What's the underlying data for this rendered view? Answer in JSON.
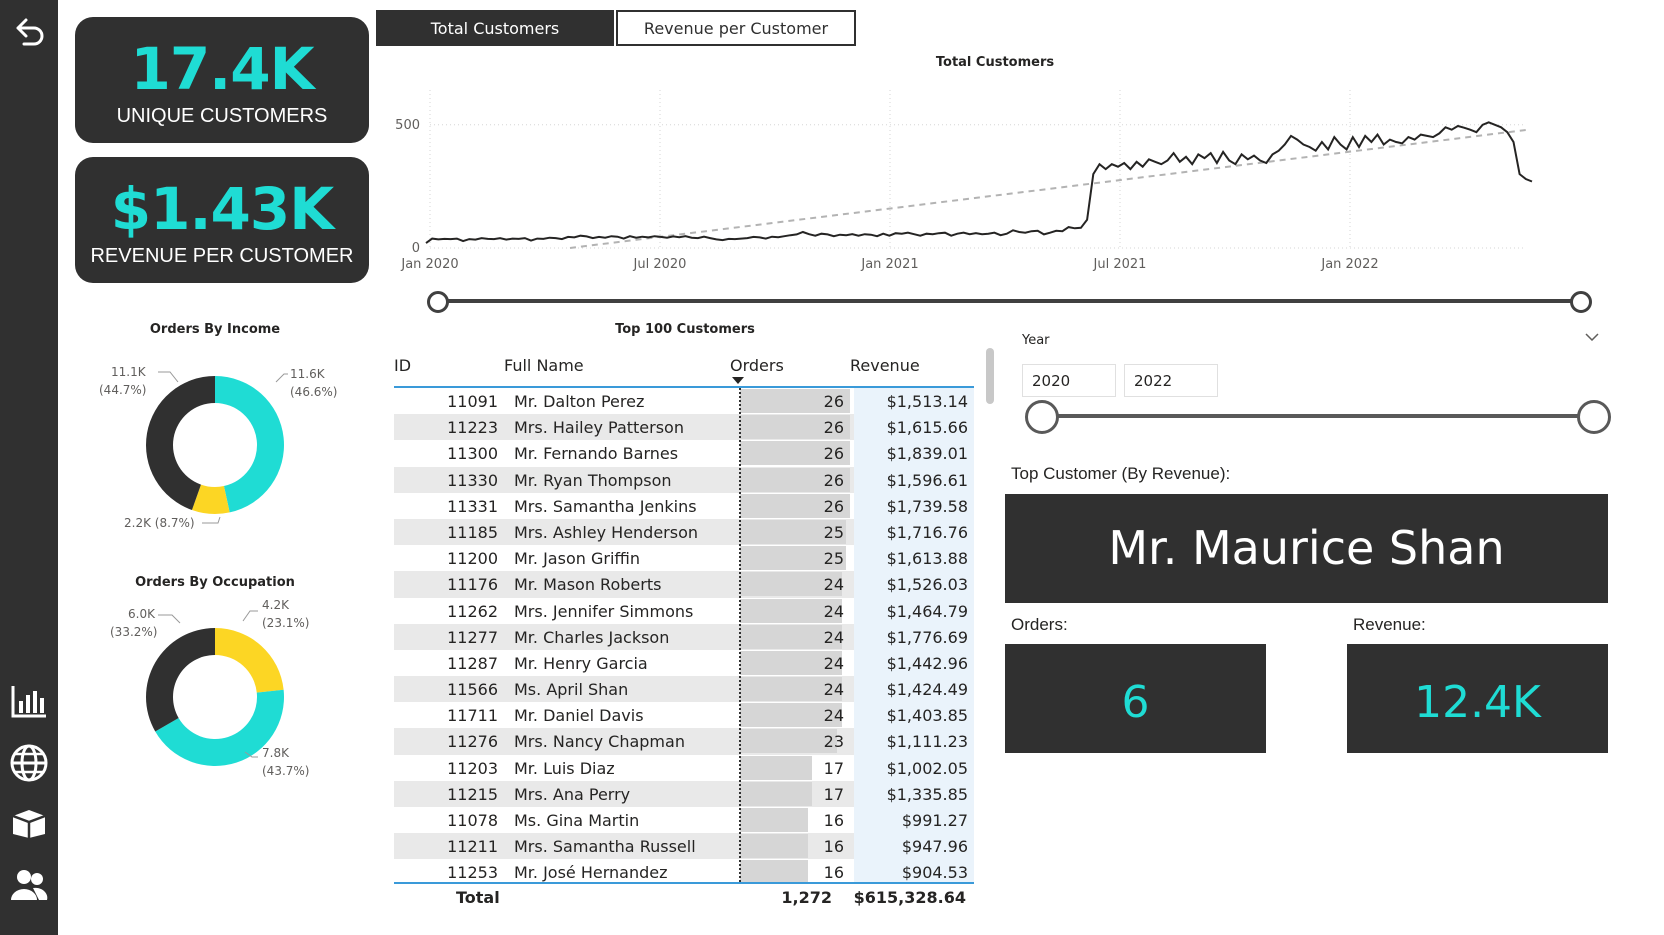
{
  "nav": {
    "items": [
      {
        "icon": "back-arrow-icon"
      },
      {
        "icon": "bar-chart-icon"
      },
      {
        "icon": "globe-icon"
      },
      {
        "icon": "box-icon"
      },
      {
        "icon": "users-icon"
      }
    ]
  },
  "kpis": {
    "unique_customers": {
      "value": "17.4K",
      "label": "UNIQUE CUSTOMERS"
    },
    "revenue_per_customer": {
      "value": "$1.43K",
      "label": "REVENUE PER CUSTOMER"
    }
  },
  "colors": {
    "accent": "#1fdcd4",
    "dark": "#303030",
    "yellow": "#fcd624",
    "header_line": "#3a9ad9"
  },
  "income_donut": {
    "title": "Orders By Income",
    "slices": [
      {
        "value": 11.6,
        "label": "11.6K",
        "pct": "(46.6%)",
        "color": "#1fdcd4"
      },
      {
        "value": 2.2,
        "label": "2.2K (8.7%)",
        "pct": "",
        "color": "#fcd624"
      },
      {
        "value": 11.1,
        "label": "11.1K",
        "pct": "(44.7%)",
        "color": "#303030"
      }
    ]
  },
  "occupation_donut": {
    "title": "Orders By Occupation",
    "slices": [
      {
        "value": 4.2,
        "label": "4.2K",
        "pct": "(23.1%)",
        "color": "#fcd624"
      },
      {
        "value": 7.8,
        "label": "7.8K",
        "pct": "(43.7%)",
        "color": "#1fdcd4"
      },
      {
        "value": 6.0,
        "label": "6.0K",
        "pct": "(33.2%)",
        "color": "#303030"
      }
    ]
  },
  "tabs": [
    {
      "label": "Total Customers",
      "active": true
    },
    {
      "label": "Revenue per Customer",
      "active": false
    }
  ],
  "chart_data": {
    "type": "line",
    "title": "Total Customers",
    "xlabel": "",
    "ylabel": "",
    "y_ticks": [
      "500",
      "0"
    ],
    "x_ticks": [
      "Jan 2020",
      "Jul 2020",
      "Jan 2021",
      "Jul 2021",
      "Jan 2022"
    ],
    "ylim": [
      0,
      560
    ],
    "x_range": [
      "2020-01",
      "2022-06"
    ],
    "series": [
      {
        "values": [
          20,
          38,
          35,
          37,
          36,
          38,
          28,
          36,
          34,
          40,
          37,
          36,
          40,
          34,
          38,
          37,
          40,
          30,
          38,
          37,
          42,
          40,
          36,
          45,
          43,
          50,
          47,
          40,
          45,
          42,
          48,
          46,
          38,
          48,
          42,
          46,
          43,
          48,
          45,
          42,
          47,
          44,
          48,
          42,
          40,
          46,
          40,
          35,
          32,
          37,
          36,
          38,
          40,
          45,
          43,
          38,
          46,
          44,
          48,
          52,
          55,
          65,
          56,
          50,
          58,
          55,
          48,
          54,
          52,
          56,
          50,
          56,
          54,
          48,
          58,
          50,
          60,
          58,
          62,
          56,
          50,
          58,
          56,
          60,
          62,
          50,
          58,
          62,
          56,
          60,
          56,
          58,
          62,
          52,
          58,
          72,
          65,
          62,
          68,
          70,
          55,
          62,
          70,
          68,
          85,
          80,
          82,
          115,
          300,
          340,
          320,
          340,
          330,
          345,
          320,
          350,
          330,
          360,
          350,
          340,
          355,
          385,
          350,
          370,
          340,
          380,
          365,
          385,
          345,
          390,
          355,
          340,
          380,
          360,
          375,
          355,
          345,
          380,
          395,
          420,
          455,
          440,
          420,
          410,
          395,
          430,
          400,
          450,
          420,
          400,
          450,
          410,
          455,
          430,
          460,
          420,
          440,
          430,
          425,
          450,
          440,
          460,
          455,
          450,
          465,
          490,
          480,
          495,
          488,
          480,
          470,
          500,
          510,
          500,
          490,
          470,
          430,
          300,
          280,
          270
        ]
      },
      {
        "values": [
          0,
          40,
          80,
          120,
          160,
          200,
          240,
          280,
          320,
          360,
          400,
          440,
          480
        ]
      }
    ],
    "slider": {
      "start": 0,
      "end": 1
    }
  },
  "table": {
    "title": "Top 100 Customers",
    "columns": [
      "ID",
      "Full Name",
      "Orders",
      "Revenue"
    ],
    "rows": [
      {
        "id": "11091",
        "name": "Mr. Dalton Perez",
        "orders": "26",
        "revenue": "$1,513.14",
        "o": 26
      },
      {
        "id": "11223",
        "name": "Mrs. Hailey Patterson",
        "orders": "26",
        "revenue": "$1,615.66",
        "o": 26
      },
      {
        "id": "11300",
        "name": "Mr. Fernando Barnes",
        "orders": "26",
        "revenue": "$1,839.01",
        "o": 26
      },
      {
        "id": "11330",
        "name": "Mr. Ryan Thompson",
        "orders": "26",
        "revenue": "$1,596.61",
        "o": 26
      },
      {
        "id": "11331",
        "name": "Mrs. Samantha Jenkins",
        "orders": "26",
        "revenue": "$1,739.58",
        "o": 26
      },
      {
        "id": "11185",
        "name": "Mrs. Ashley Henderson",
        "orders": "25",
        "revenue": "$1,716.76",
        "o": 25
      },
      {
        "id": "11200",
        "name": "Mr. Jason Griffin",
        "orders": "25",
        "revenue": "$1,613.88",
        "o": 25
      },
      {
        "id": "11176",
        "name": "Mr. Mason Roberts",
        "orders": "24",
        "revenue": "$1,526.03",
        "o": 24
      },
      {
        "id": "11262",
        "name": "Mrs. Jennifer Simmons",
        "orders": "24",
        "revenue": "$1,464.79",
        "o": 24
      },
      {
        "id": "11277",
        "name": "Mr. Charles Jackson",
        "orders": "24",
        "revenue": "$1,776.69",
        "o": 24
      },
      {
        "id": "11287",
        "name": "Mr. Henry Garcia",
        "orders": "24",
        "revenue": "$1,442.96",
        "o": 24
      },
      {
        "id": "11566",
        "name": "Ms. April Shan",
        "orders": "24",
        "revenue": "$1,424.49",
        "o": 24
      },
      {
        "id": "11711",
        "name": "Mr. Daniel Davis",
        "orders": "24",
        "revenue": "$1,403.85",
        "o": 24
      },
      {
        "id": "11276",
        "name": "Mrs. Nancy Chapman",
        "orders": "23",
        "revenue": "$1,111.23",
        "o": 23
      },
      {
        "id": "11203",
        "name": "Mr. Luis Diaz",
        "orders": "17",
        "revenue": "$1,002.05",
        "o": 17
      },
      {
        "id": "11215",
        "name": "Mrs. Ana Perry",
        "orders": "17",
        "revenue": "$1,335.85",
        "o": 17
      },
      {
        "id": "11078",
        "name": "Ms. Gina Martin",
        "orders": "16",
        "revenue": "$991.27",
        "o": 16
      },
      {
        "id": "11211",
        "name": "Mrs. Samantha Russell",
        "orders": "16",
        "revenue": "$947.96",
        "o": 16
      },
      {
        "id": "11253",
        "name": "Mr. José Hernandez",
        "orders": "16",
        "revenue": "$904.53",
        "o": 16
      }
    ],
    "total": {
      "label": "Total",
      "orders": "1,272",
      "revenue": "$615,328.64"
    }
  },
  "year_slicer": {
    "label": "Year",
    "from": "2020",
    "to": "2022"
  },
  "top_customer": {
    "label": "Top Customer (By Revenue):",
    "name": "Mr. Maurice Shan",
    "orders_label": "Orders:",
    "orders_value": "6",
    "revenue_label": "Revenue:",
    "revenue_value": "12.4K"
  }
}
